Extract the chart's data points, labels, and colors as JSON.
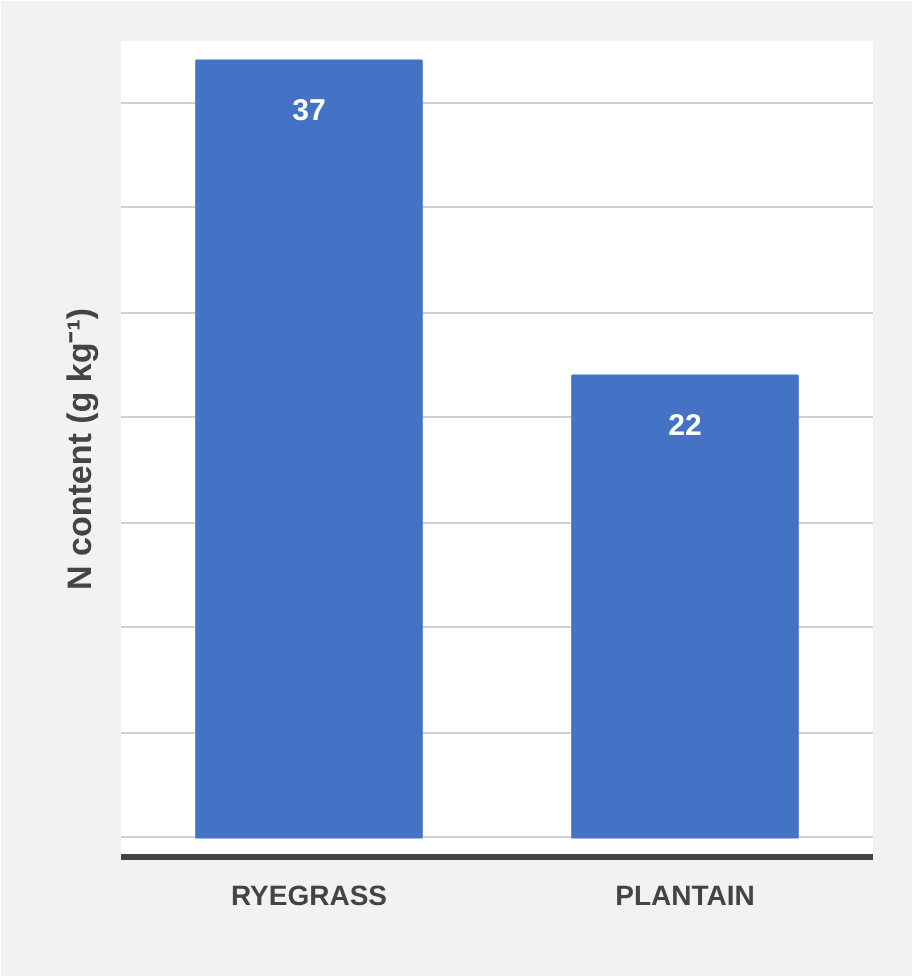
{
  "chart_data": {
    "type": "bar",
    "ylabel": "N content (g kg⁻¹)",
    "categories": [
      "RYEGRASS",
      "PLANTAIN"
    ],
    "values": [
      37,
      22
    ],
    "color": "#4472c4",
    "yticks": [
      {
        "value": 0,
        "label": null
      },
      {
        "value": 5,
        "label": null
      },
      {
        "value": 10,
        "label": null
      },
      {
        "value": 15,
        "label": null
      },
      {
        "value": 20,
        "label": null
      },
      {
        "value": 25,
        "label": null
      },
      {
        "value": 30,
        "label": null
      },
      {
        "value": 35,
        "label": null
      }
    ],
    "grid": "y",
    "data_labels": true,
    "tick_labels": "x"
  }
}
